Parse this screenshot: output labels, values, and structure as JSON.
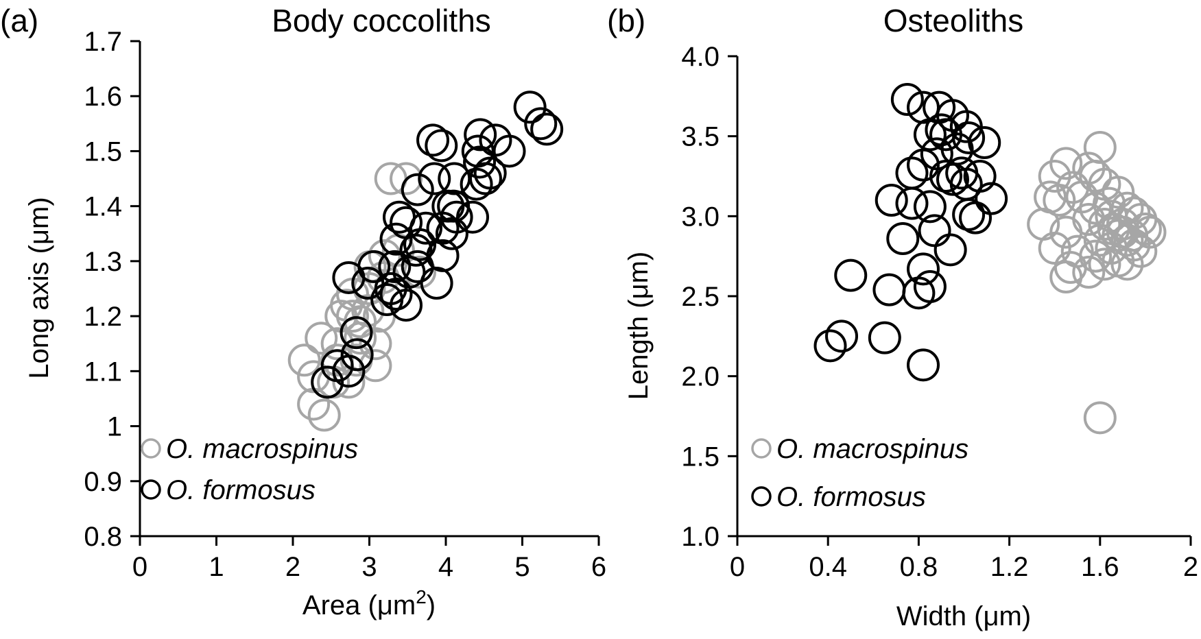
{
  "chart_data": [
    {
      "type": "scatter",
      "panel_label": "(a)",
      "title": "Body coccoliths",
      "xlabel": "Area (μm",
      "xlabel_sup": "2",
      "xlabel_end": ")",
      "ylabel": "Long axis (μm)",
      "xlim": [
        0,
        6
      ],
      "ylim": [
        0.8,
        1.7
      ],
      "xticks": [
        0,
        1,
        2,
        3,
        4,
        5,
        6
      ],
      "xtick_labels": [
        "0",
        "1",
        "2",
        "3",
        "4",
        "5",
        "6"
      ],
      "yticks": [
        0.8,
        0.9,
        1.0,
        1.1,
        1.2,
        1.3,
        1.4,
        1.5,
        1.6,
        1.7
      ],
      "ytick_labels": [
        "0.8",
        "0.9",
        "1",
        "1.1",
        "1.2",
        "1.3",
        "1.4",
        "1.5",
        "1.6",
        "1.7"
      ],
      "grid": false,
      "legend_position": "bottom-left",
      "series": [
        {
          "name": "O. macrospinus",
          "color": "#a6a6a6",
          "marker": "open-circle",
          "points": [
            [
              3.28,
              1.45
            ],
            [
              3.48,
              1.45
            ],
            [
              3.01,
              1.29
            ],
            [
              3.18,
              1.27
            ],
            [
              3.38,
              1.32
            ],
            [
              2.78,
              1.24
            ],
            [
              2.63,
              1.2
            ],
            [
              2.78,
              1.2
            ],
            [
              2.98,
              1.21
            ],
            [
              3.13,
              1.2
            ],
            [
              2.37,
              1.16
            ],
            [
              2.58,
              1.15
            ],
            [
              2.88,
              1.16
            ],
            [
              3.08,
              1.15
            ],
            [
              2.15,
              1.12
            ],
            [
              2.27,
              1.09
            ],
            [
              2.58,
              1.12
            ],
            [
              2.83,
              1.12
            ],
            [
              3.08,
              1.11
            ],
            [
              2.27,
              1.04
            ],
            [
              2.41,
              1.02
            ],
            [
              2.73,
              1.08
            ],
            [
              2.53,
              1.08
            ],
            [
              2.88,
              1.19
            ],
            [
              3.66,
              1.28
            ],
            [
              3.2,
              1.31
            ],
            [
              2.7,
              1.22
            ],
            [
              3.0,
              1.25
            ]
          ]
        },
        {
          "name": "O. formosus",
          "color": "#000000",
          "marker": "open-circle",
          "points": [
            [
              5.1,
              1.58
            ],
            [
              5.24,
              1.55
            ],
            [
              5.32,
              1.54
            ],
            [
              3.83,
              1.52
            ],
            [
              3.94,
              1.51
            ],
            [
              4.45,
              1.53
            ],
            [
              4.65,
              1.52
            ],
            [
              4.83,
              1.5
            ],
            [
              4.42,
              1.5
            ],
            [
              4.44,
              1.48
            ],
            [
              4.58,
              1.46
            ],
            [
              4.52,
              1.45
            ],
            [
              4.4,
              1.44
            ],
            [
              4.11,
              1.45
            ],
            [
              3.85,
              1.45
            ],
            [
              3.63,
              1.43
            ],
            [
              4.03,
              1.4
            ],
            [
              4.1,
              1.4
            ],
            [
              4.14,
              1.38
            ],
            [
              4.35,
              1.38
            ],
            [
              3.39,
              1.38
            ],
            [
              3.48,
              1.37
            ],
            [
              3.74,
              1.36
            ],
            [
              3.96,
              1.36
            ],
            [
              4.08,
              1.35
            ],
            [
              3.35,
              1.34
            ],
            [
              3.66,
              1.33
            ],
            [
              3.61,
              1.32
            ],
            [
              3.96,
              1.31
            ],
            [
              3.06,
              1.29
            ],
            [
              3.33,
              1.29
            ],
            [
              3.63,
              1.29
            ],
            [
              3.52,
              1.28
            ],
            [
              3.88,
              1.26
            ],
            [
              2.73,
              1.27
            ],
            [
              2.98,
              1.26
            ],
            [
              3.28,
              1.25
            ],
            [
              3.35,
              1.24
            ],
            [
              3.23,
              1.23
            ],
            [
              3.48,
              1.22
            ],
            [
              2.83,
              1.17
            ],
            [
              2.84,
              1.13
            ],
            [
              2.58,
              1.11
            ],
            [
              2.73,
              1.1
            ],
            [
              2.45,
              1.08
            ]
          ]
        }
      ]
    },
    {
      "type": "scatter",
      "panel_label": "(b)",
      "title": "Osteoliths",
      "xlabel": "Width (μm)",
      "ylabel": "Length (μm)",
      "xlim": [
        0,
        2
      ],
      "ylim": [
        1.0,
        4.0
      ],
      "xticks": [
        0,
        0.4,
        0.8,
        1.2,
        1.6,
        2.0
      ],
      "xtick_labels": [
        "0",
        "0.4",
        "0.8",
        "1.2",
        "1.6",
        "2"
      ],
      "yticks": [
        1.0,
        1.5,
        2.0,
        2.5,
        3.0,
        3.5,
        4.0
      ],
      "ytick_labels": [
        "1.0",
        "1.5",
        "2.0",
        "2.5",
        "3.0",
        "3.5",
        "4.0"
      ],
      "grid": false,
      "legend_position": "bottom-left",
      "series": [
        {
          "name": "O.  macrospinus",
          "color": "#a6a6a6",
          "marker": "open-circle",
          "points": [
            [
              1.6,
              3.43
            ],
            [
              1.45,
              3.33
            ],
            [
              1.55,
              3.3
            ],
            [
              1.4,
              3.25
            ],
            [
              1.58,
              3.25
            ],
            [
              1.62,
              3.2
            ],
            [
              1.48,
              3.18
            ],
            [
              1.52,
              3.12
            ],
            [
              1.38,
              3.12
            ],
            [
              1.42,
              3.1
            ],
            [
              1.68,
              3.15
            ],
            [
              1.72,
              3.05
            ],
            [
              1.75,
              3.02
            ],
            [
              1.65,
              3.0
            ],
            [
              1.58,
              3.05
            ],
            [
              1.55,
              2.98
            ],
            [
              1.35,
              2.95
            ],
            [
              1.45,
              2.9
            ],
            [
              1.62,
              2.95
            ],
            [
              1.7,
              2.95
            ],
            [
              1.78,
              2.98
            ],
            [
              1.8,
              2.92
            ],
            [
              1.82,
              2.9
            ],
            [
              1.68,
              2.88
            ],
            [
              1.72,
              2.85
            ],
            [
              1.6,
              2.85
            ],
            [
              1.65,
              2.8
            ],
            [
              1.75,
              2.82
            ],
            [
              1.78,
              2.78
            ],
            [
              1.4,
              2.8
            ],
            [
              1.5,
              2.78
            ],
            [
              1.58,
              2.75
            ],
            [
              1.68,
              2.72
            ],
            [
              1.72,
              2.7
            ],
            [
              1.62,
              2.7
            ],
            [
              1.55,
              2.65
            ],
            [
              1.45,
              2.62
            ],
            [
              1.47,
              2.68
            ],
            [
              1.7,
              2.9
            ],
            [
              1.66,
              2.92
            ],
            [
              1.74,
              2.88
            ],
            [
              1.64,
              3.08
            ],
            [
              1.6,
              1.74
            ]
          ]
        },
        {
          "name": "O. formosus",
          "color": "#000000",
          "marker": "open-circle",
          "points": [
            [
              0.75,
              3.73
            ],
            [
              0.82,
              3.68
            ],
            [
              0.89,
              3.68
            ],
            [
              0.95,
              3.63
            ],
            [
              1.01,
              3.56
            ],
            [
              0.85,
              3.51
            ],
            [
              0.9,
              3.54
            ],
            [
              0.92,
              3.51
            ],
            [
              1.02,
              3.49
            ],
            [
              1.09,
              3.46
            ],
            [
              0.97,
              3.42
            ],
            [
              0.88,
              3.39
            ],
            [
              0.82,
              3.32
            ],
            [
              0.77,
              3.27
            ],
            [
              0.92,
              3.25
            ],
            [
              0.95,
              3.23
            ],
            [
              1.01,
              3.2
            ],
            [
              1.07,
              3.25
            ],
            [
              1.12,
              3.11
            ],
            [
              0.99,
              3.27
            ],
            [
              0.77,
              3.08
            ],
            [
              0.68,
              3.1
            ],
            [
              0.85,
              3.06
            ],
            [
              1.02,
              3.01
            ],
            [
              1.05,
              2.99
            ],
            [
              0.73,
              2.86
            ],
            [
              0.87,
              2.91
            ],
            [
              0.94,
              2.79
            ],
            [
              0.82,
              2.67
            ],
            [
              0.5,
              2.63
            ],
            [
              0.67,
              2.54
            ],
            [
              0.8,
              2.52
            ],
            [
              0.85,
              2.56
            ],
            [
              0.46,
              2.25
            ],
            [
              0.41,
              2.19
            ],
            [
              0.65,
              2.24
            ],
            [
              0.82,
              2.07
            ]
          ]
        }
      ]
    }
  ]
}
